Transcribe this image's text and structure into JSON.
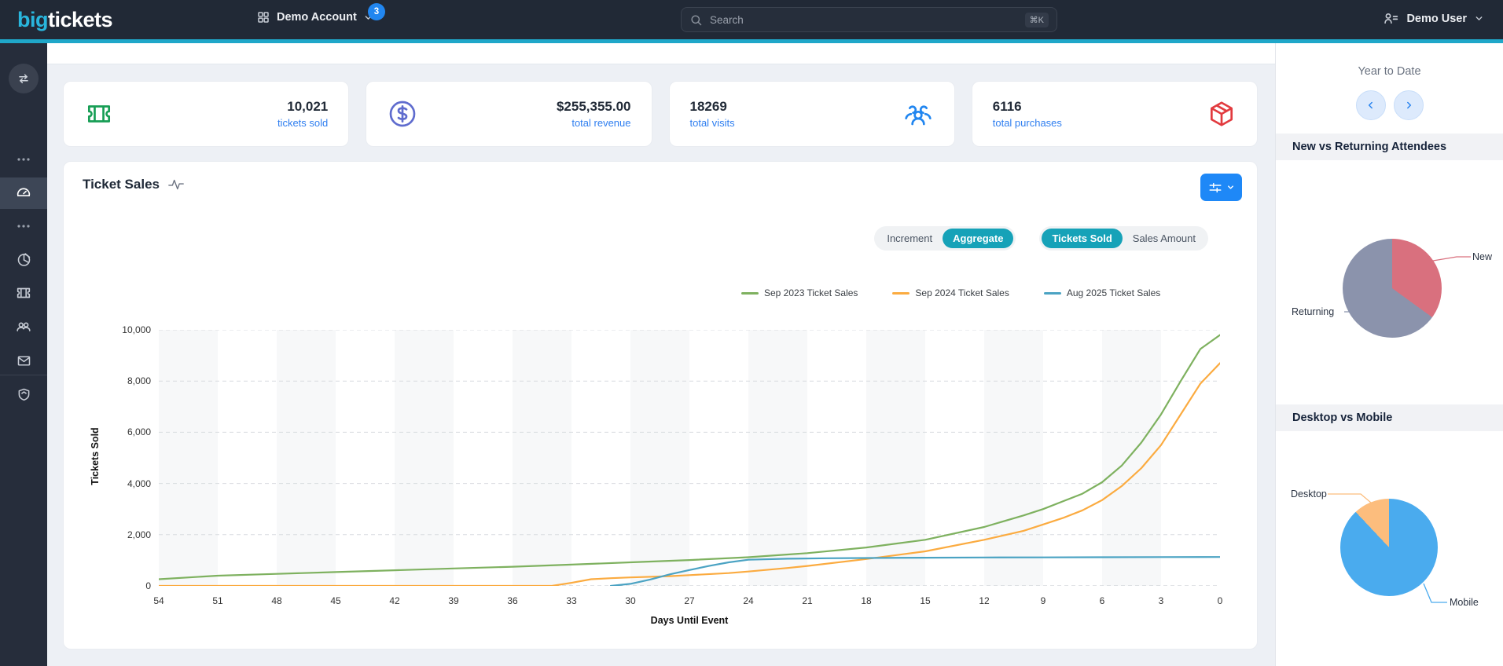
{
  "header": {
    "logo": {
      "bold": "big",
      "light": "tickets"
    },
    "account": {
      "label": "Demo Account",
      "badge": "3",
      "icon": "grid-icon"
    },
    "search": {
      "placeholder": "Search",
      "shortcut": "⌘K",
      "icon": "search-icon"
    },
    "user": {
      "label": "Demo User",
      "icon": "user-list-icon"
    }
  },
  "sidebar": {
    "items": [
      {
        "icon": "swap-arrows-icon",
        "name": "collapse-sidebar"
      },
      {
        "icon": "ellipsis-icon",
        "name": "more-top"
      },
      {
        "icon": "dashboard-gauge-icon",
        "name": "dashboard",
        "active": true
      },
      {
        "icon": "ellipsis-icon",
        "name": "more-middle"
      },
      {
        "icon": "pie-chart-icon",
        "name": "reports"
      },
      {
        "icon": "ticket-icon",
        "name": "tickets"
      },
      {
        "icon": "users-icon",
        "name": "attendees"
      },
      {
        "icon": "mail-icon",
        "name": "messages"
      },
      {
        "icon": "shield-icon",
        "name": "security"
      }
    ]
  },
  "stats": [
    {
      "value": "10,021",
      "label": "tickets sold",
      "icon": "ticket-icon",
      "icon_color": "#179e55"
    },
    {
      "value": "$255,355.00",
      "label": "total revenue",
      "icon": "dollar-circle-icon",
      "icon_color": "#5f6cce"
    },
    {
      "value": "18269",
      "label": "total visits",
      "icon": "user-group-icon",
      "icon_color": "#2186f0"
    },
    {
      "value": "6116",
      "label": "total purchases",
      "icon": "package-box-icon",
      "icon_color": "#e23b3f"
    }
  ],
  "ticket_sales_panel": {
    "title": "Ticket Sales",
    "title_icon": "activity-pulse-icon",
    "settings_icon": "sliders-icon",
    "accent_color": "#16a2b8",
    "toggles": [
      {
        "options": [
          "Increment",
          "Aggregate"
        ],
        "active": "Aggregate"
      },
      {
        "options": [
          "Tickets Sold",
          "Sales Amount"
        ],
        "active": "Tickets Sold"
      }
    ]
  },
  "right_panel": {
    "period_label": "Year to Date",
    "sections": [
      {
        "title": "New vs Returning Attendees"
      },
      {
        "title": "Desktop vs Mobile"
      }
    ]
  },
  "chart_data": [
    {
      "id": "ticket-sales",
      "type": "line",
      "title": "Ticket Sales",
      "xlabel": "Days Until Event",
      "ylabel": "Tickets Sold",
      "xlim": [
        54,
        0
      ],
      "ylim": [
        0,
        10000
      ],
      "x_ticks": [
        54,
        51,
        48,
        45,
        42,
        39,
        36,
        33,
        30,
        27,
        24,
        21,
        18,
        15,
        12,
        9,
        6,
        3,
        0
      ],
      "y_tick_values": [
        0,
        2000,
        4000,
        6000,
        8000,
        10000
      ],
      "y_tick_labels": [
        "0",
        "2,000",
        "4,000",
        "6,000",
        "8,000",
        "10,000"
      ],
      "grid": "dashed-horizontal",
      "legend_position": "top",
      "series": [
        {
          "name": "Sep 2023 Ticket Sales",
          "color": "#7eb15f",
          "x": [
            54,
            51,
            48,
            45,
            42,
            39,
            36,
            33,
            30,
            27,
            24,
            21,
            18,
            15,
            12,
            10,
            9,
            8,
            7,
            6,
            5,
            4,
            3,
            2,
            1,
            0
          ],
          "values": [
            260,
            400,
            470,
            540,
            610,
            680,
            750,
            830,
            920,
            1010,
            1120,
            1280,
            1500,
            1800,
            2300,
            2750,
            3000,
            3300,
            3600,
            4050,
            4700,
            5600,
            6700,
            8000,
            9250,
            9800
          ]
        },
        {
          "name": "Sep 2024 Ticket Sales",
          "color": "#fbab40",
          "x": [
            54,
            45,
            36,
            34,
            33,
            32,
            31,
            30,
            28,
            27,
            25,
            24,
            22,
            21,
            18,
            15,
            12,
            10,
            9,
            8,
            7,
            6,
            5,
            4,
            3,
            2,
            1,
            0
          ],
          "values": [
            0,
            0,
            0,
            0,
            120,
            260,
            300,
            330,
            380,
            420,
            500,
            560,
            700,
            780,
            1050,
            1350,
            1800,
            2150,
            2400,
            2650,
            2950,
            3350,
            3900,
            4600,
            5500,
            6700,
            7900,
            8700
          ]
        },
        {
          "name": "Aug 2025 Ticket Sales",
          "color": "#4ba3c3",
          "x": [
            31,
            30,
            29,
            28,
            27,
            26,
            25,
            24,
            22,
            20,
            18,
            15,
            12,
            9,
            6,
            3,
            0
          ],
          "values": [
            0,
            80,
            250,
            450,
            620,
            780,
            920,
            1020,
            1060,
            1080,
            1090,
            1100,
            1110,
            1115,
            1120,
            1125,
            1130
          ]
        }
      ]
    },
    {
      "id": "new-vs-returning",
      "type": "pie",
      "title": "New vs Returning Attendees",
      "slices": [
        {
          "label": "New",
          "value": 35,
          "color": "#d9707e"
        },
        {
          "label": "Returning",
          "value": 65,
          "color": "#8b93ac"
        }
      ]
    },
    {
      "id": "desktop-vs-mobile",
      "type": "pie",
      "title": "Desktop vs Mobile",
      "slices": [
        {
          "label": "Mobile",
          "value": 88,
          "color": "#4aabee"
        },
        {
          "label": "Desktop",
          "value": 12,
          "color": "#fcbd7d"
        }
      ]
    }
  ]
}
